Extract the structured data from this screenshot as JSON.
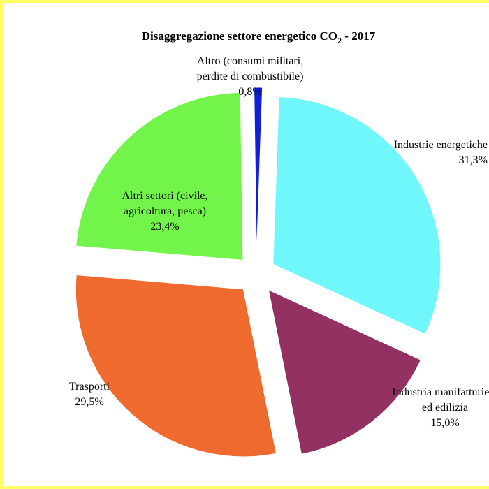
{
  "chart_data": {
    "type": "pie",
    "title_main": "Disaggregazione settore energetico CO",
    "title_sub": "2",
    "title_tail": " - 2017",
    "slices": [
      {
        "label_lines": [
          "Industrie energetiche"
        ],
        "value_label": "31,3%",
        "value": 31.3,
        "color": "#6ff7fb"
      },
      {
        "label_lines": [
          "Industria manifatturiera",
          "ed edilizia"
        ],
        "value_label": "15,0%",
        "value": 15.0,
        "color": "#933163"
      },
      {
        "label_lines": [
          "Trasporti"
        ],
        "value_label": "29,5%",
        "value": 29.5,
        "color": "#ef6a2f"
      },
      {
        "label_lines": [
          "Altri settori (civile,",
          "agricoltura, pesca)"
        ],
        "value_label": "23,4%",
        "value": 23.4,
        "color": "#72f44a"
      },
      {
        "label_lines": [
          "Altro (consumi militari,",
          "perdite di combustibile)"
        ],
        "value_label": "0,8%",
        "value": 0.8,
        "color": "#1020d8"
      }
    ],
    "legend": "none",
    "exploded": true
  }
}
